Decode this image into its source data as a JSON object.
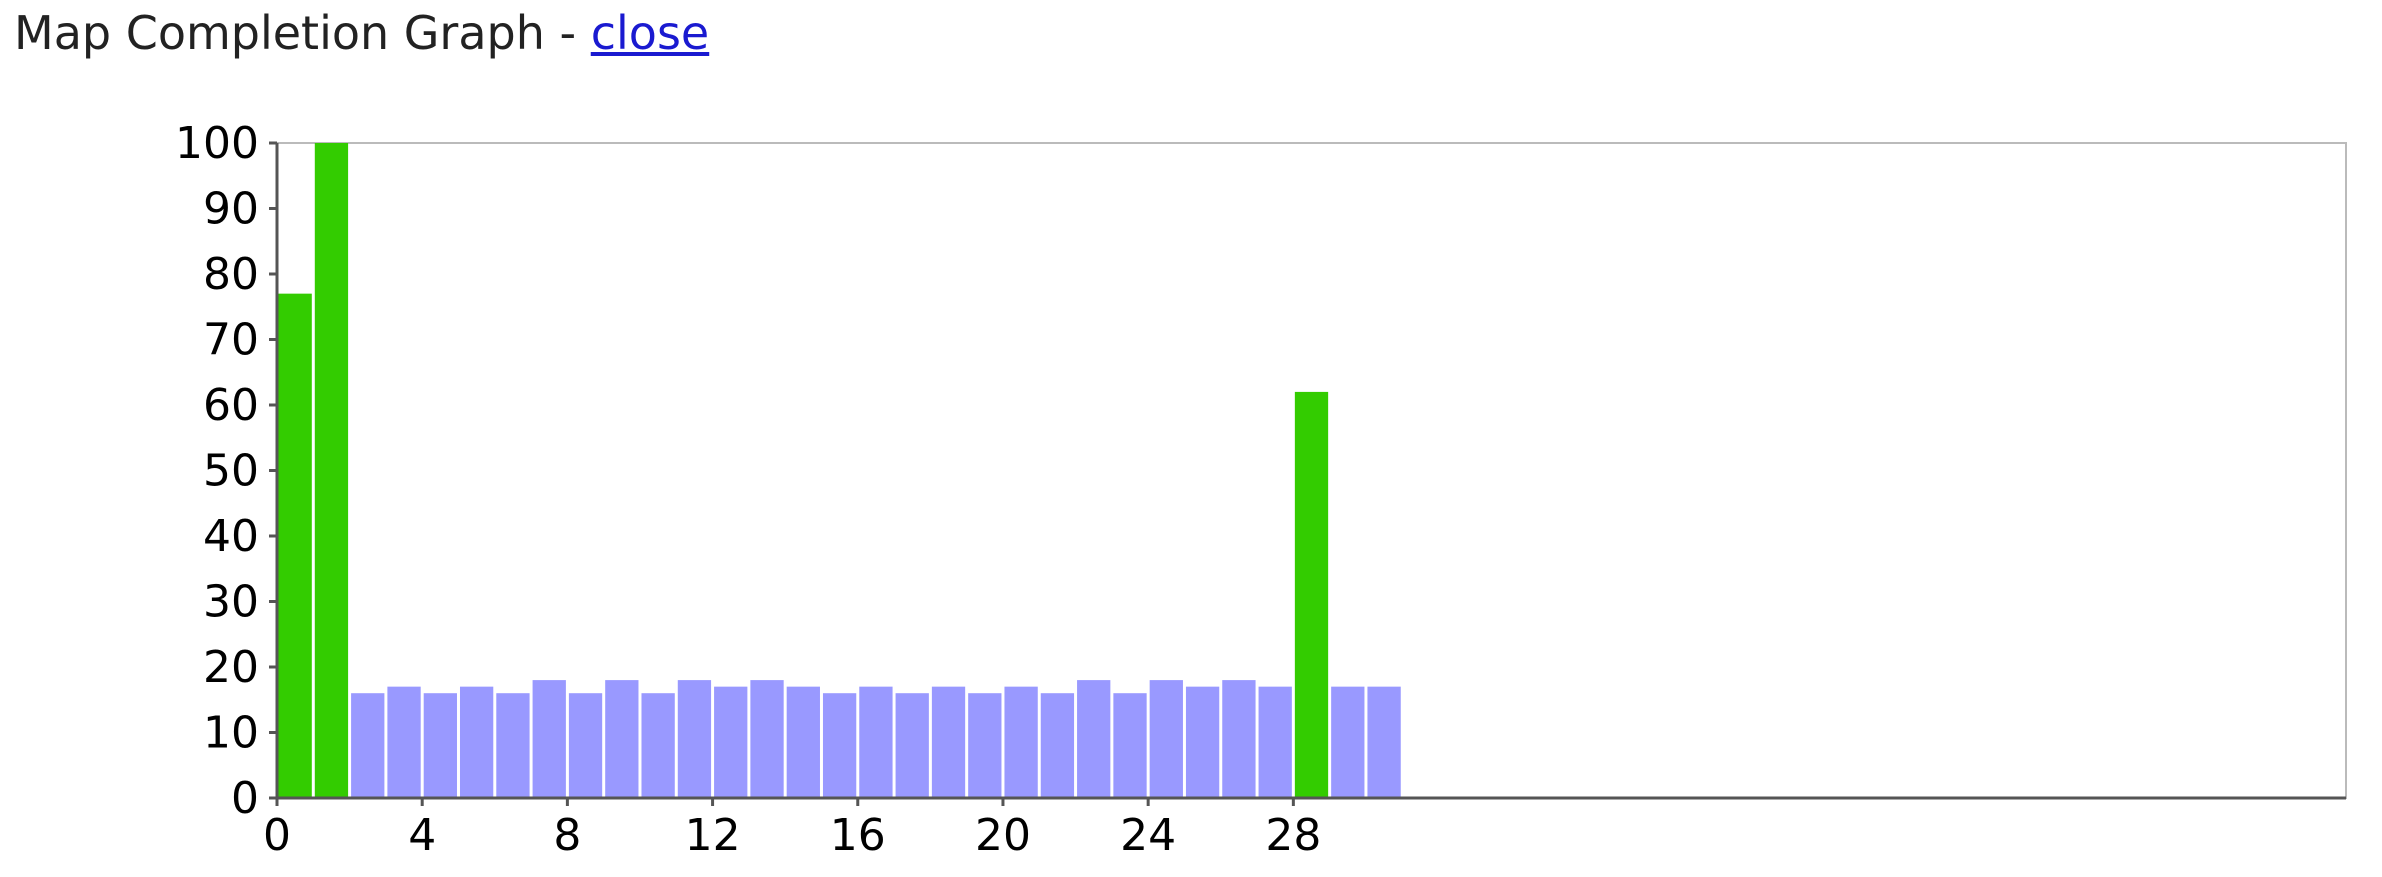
{
  "header": {
    "title": "Map Completion Graph",
    "separator": " - ",
    "close_label": "close"
  },
  "chart_data": {
    "type": "bar",
    "title": "",
    "xlabel": "",
    "ylabel": "",
    "ylim": [
      0,
      100
    ],
    "xlim": [
      0,
      57
    ],
    "yticks": [
      0,
      10,
      20,
      30,
      40,
      50,
      60,
      70,
      80,
      90,
      100
    ],
    "xticks": [
      0,
      4,
      8,
      12,
      16,
      20,
      24,
      28
    ],
    "grid": false,
    "colors": {
      "highlight": "#33cc00",
      "normal": "#9999ff",
      "axis": "#555555",
      "frame": "#bbbbbb"
    },
    "categories": [
      0,
      1,
      2,
      3,
      4,
      5,
      6,
      7,
      8,
      9,
      10,
      11,
      12,
      13,
      14,
      15,
      16,
      17,
      18,
      19,
      20,
      21,
      22,
      23,
      24,
      25,
      26,
      27,
      28,
      29,
      30
    ],
    "values": [
      77,
      100,
      16,
      17,
      16,
      17,
      16,
      18,
      16,
      18,
      16,
      18,
      17,
      18,
      17,
      16,
      17,
      16,
      17,
      16,
      17,
      16,
      18,
      16,
      18,
      17,
      18,
      17,
      62,
      17,
      17
    ],
    "highlighted": [
      0,
      1,
      28
    ]
  }
}
